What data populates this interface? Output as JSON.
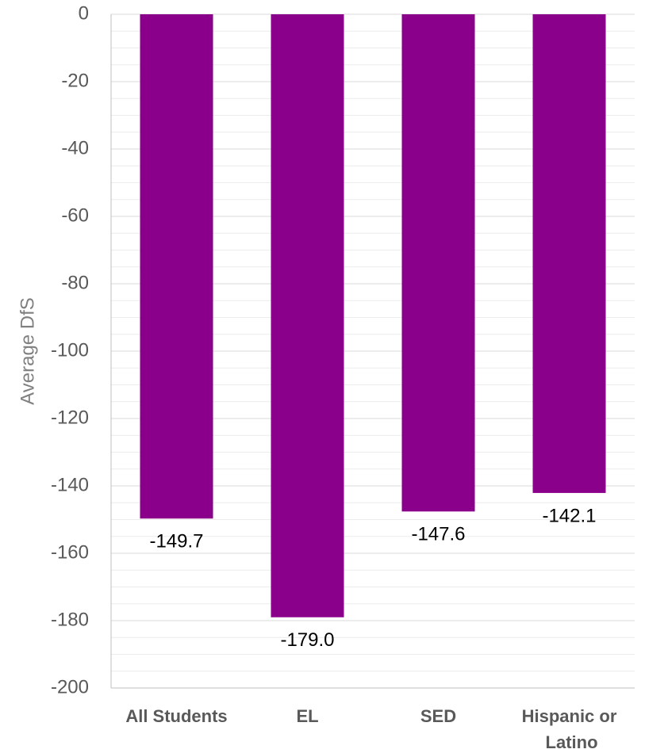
{
  "chart_data": {
    "type": "bar",
    "categories": [
      "All Students",
      "EL",
      "SED",
      "Hispanic or Latino"
    ],
    "values": [
      -149.7,
      -179.0,
      -147.6,
      -142.1
    ],
    "value_labels": [
      "-149.7",
      "-179.0",
      "-147.6",
      "-142.1"
    ],
    "color": "#8b008b",
    "y_label": "Average DfS",
    "ylim": [
      -200,
      0
    ],
    "yticks": [
      0,
      -20,
      -40,
      -60,
      -80,
      -100,
      -120,
      -140,
      -160,
      -180,
      -200
    ],
    "grid": true,
    "minor_grid": true
  }
}
